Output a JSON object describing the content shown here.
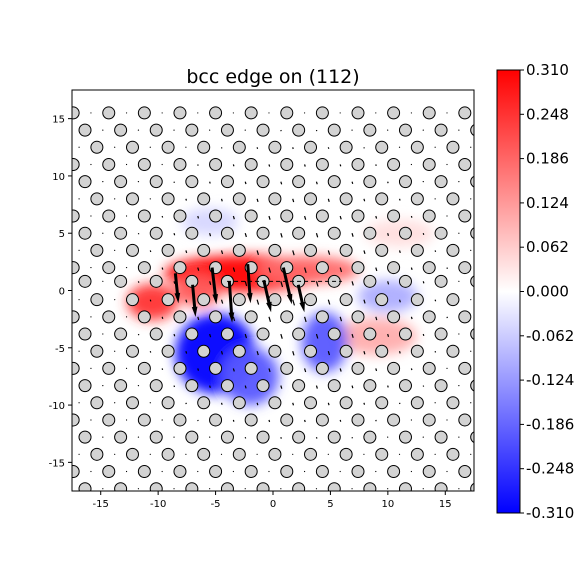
{
  "chart_data": {
    "type": "heatmap",
    "title": "bcc edge on (112)",
    "xlabel": "",
    "ylabel": "",
    "xlim": [
      -17.5,
      17.5
    ],
    "ylim": [
      -17.5,
      17.5
    ],
    "xticks": [
      -15,
      -10,
      -5,
      0,
      5,
      10,
      15
    ],
    "yticks": [
      -15,
      -10,
      -5,
      0,
      5,
      10,
      15
    ],
    "grid": false,
    "colormap": "bwr",
    "colorbar": {
      "min": -0.31,
      "max": 0.31,
      "ticks": [
        "0.310",
        "0.248",
        "0.186",
        "0.124",
        "0.062",
        "0.000",
        "-0.062",
        "-0.124",
        "-0.186",
        "-0.248",
        "-0.310"
      ],
      "tick_values": [
        0.31,
        0.248,
        0.186,
        0.124,
        0.062,
        0.0,
        -0.062,
        -0.124,
        -0.186,
        -0.248,
        -0.31
      ]
    },
    "atoms": {
      "face_color": "#d3d3d3",
      "edge_color": "#000000",
      "lattice": "triangular-like (112) projection",
      "rows_y": [
        15.5,
        14.0,
        12.5,
        11.0,
        9.5,
        8.0,
        6.5,
        5.0,
        3.5,
        2.0,
        0.8,
        -0.8,
        -2.3,
        -3.8,
        -5.3,
        -6.8,
        -8.3,
        -9.8,
        -11.3,
        -12.8,
        -14.3,
        -15.8,
        -17.3
      ],
      "spacing_x": 3.1
    },
    "arrows_near_core": [
      {
        "x": -8.5,
        "y": 1.5,
        "dx": 0.2,
        "dy": -2.0
      },
      {
        "x": -7.0,
        "y": 0.5,
        "dx": 0.2,
        "dy": -2.2
      },
      {
        "x": -5.3,
        "y": 2.0,
        "dx": 0.3,
        "dy": -2.6
      },
      {
        "x": -3.8,
        "y": 0.8,
        "dx": 0.2,
        "dy": -3.0
      },
      {
        "x": -2.2,
        "y": 2.3,
        "dx": 0.2,
        "dy": -2.8
      },
      {
        "x": -0.8,
        "y": 0.9,
        "dx": 0.5,
        "dy": -2.2
      },
      {
        "x": 0.9,
        "y": 2.0,
        "dx": 0.6,
        "dy": -2.6
      },
      {
        "x": 2.2,
        "y": 0.5,
        "dx": 0.4,
        "dy": -1.8
      }
    ],
    "field_blobs": [
      {
        "x": -2.5,
        "y": 1.5,
        "sx": 7.0,
        "sy": 1.6,
        "v": 0.31
      },
      {
        "x": 3.0,
        "y": 1.8,
        "sx": 4.5,
        "sy": 1.2,
        "v": 0.18
      },
      {
        "x": -10.5,
        "y": -1.0,
        "sx": 2.2,
        "sy": 1.6,
        "v": 0.25
      },
      {
        "x": -6.5,
        "y": 0.0,
        "sx": 2.0,
        "sy": 1.4,
        "v": 0.2
      },
      {
        "x": 9.0,
        "y": -4.0,
        "sx": 3.5,
        "sy": 1.6,
        "v": 0.1
      },
      {
        "x": 11.0,
        "y": 5.0,
        "sx": 3.0,
        "sy": 1.2,
        "v": 0.04
      },
      {
        "x": -5.0,
        "y": -5.5,
        "sx": 3.5,
        "sy": 3.5,
        "v": -0.31
      },
      {
        "x": -2.0,
        "y": -7.5,
        "sx": 2.5,
        "sy": 2.5,
        "v": -0.2
      },
      {
        "x": 4.5,
        "y": -4.5,
        "sx": 2.0,
        "sy": 2.6,
        "v": -0.2
      },
      {
        "x": 10.0,
        "y": -0.5,
        "sx": 2.6,
        "sy": 1.4,
        "v": -0.1
      },
      {
        "x": -5.5,
        "y": 6.0,
        "sx": 2.5,
        "sy": 1.2,
        "v": -0.05
      }
    ]
  }
}
